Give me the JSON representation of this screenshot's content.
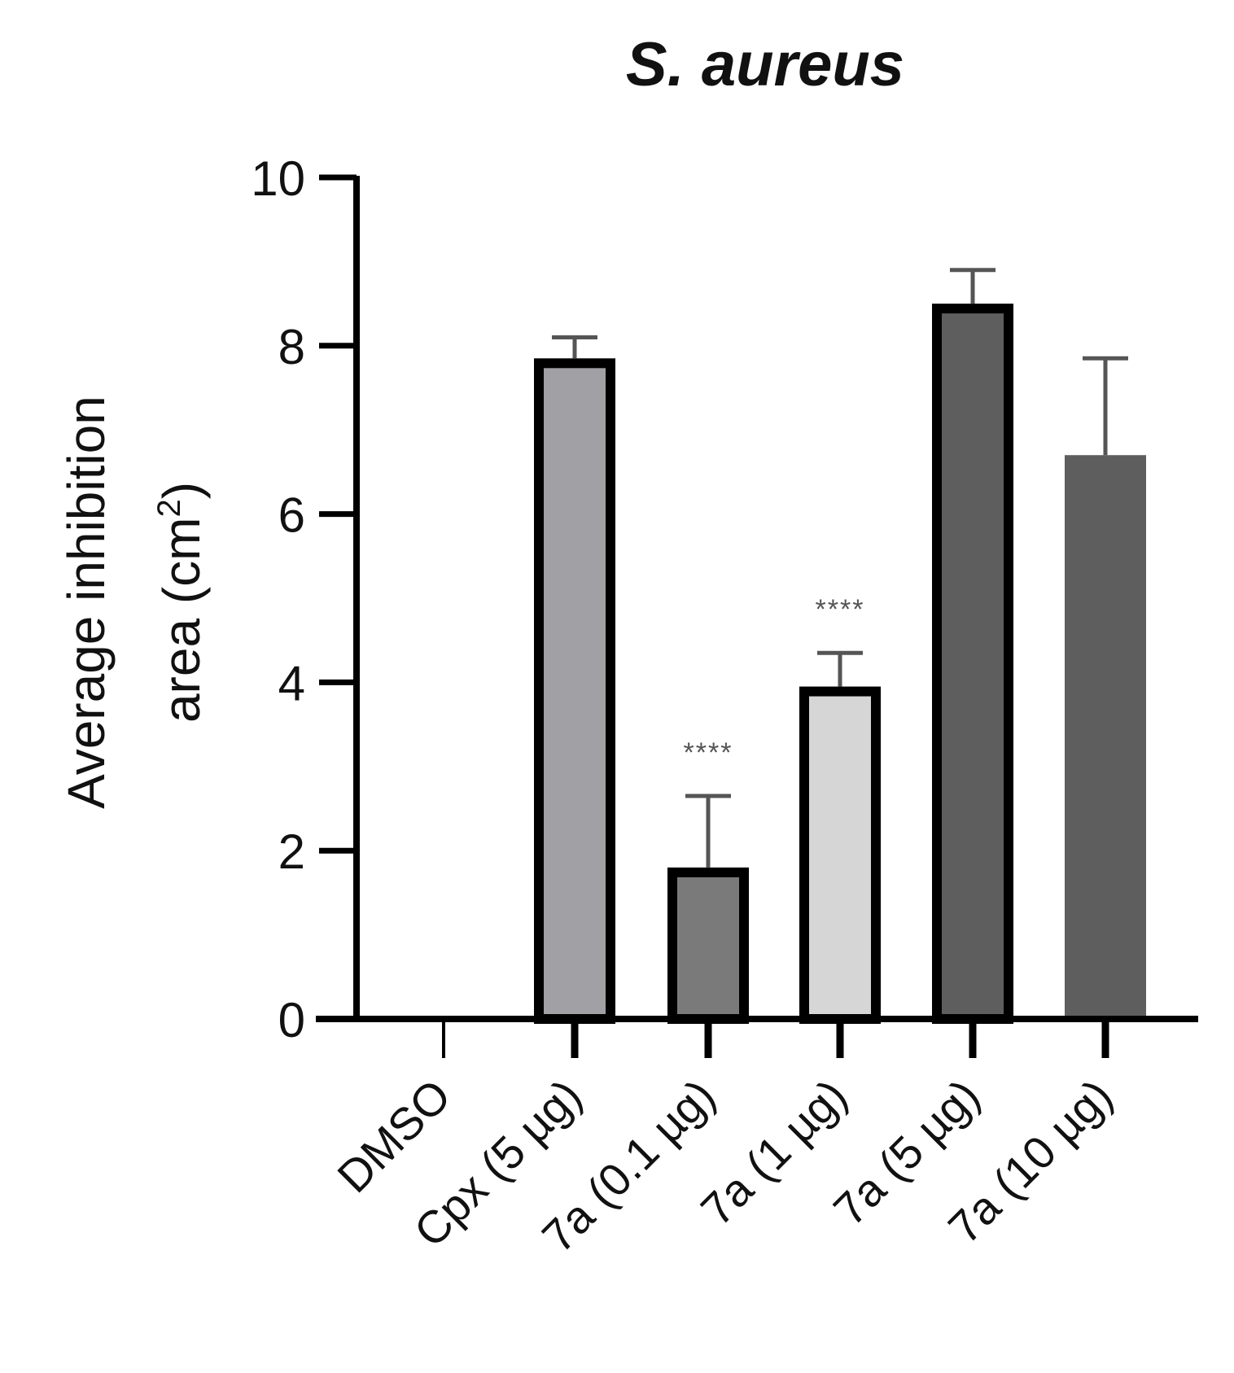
{
  "chart_data": {
    "type": "bar",
    "title": "S. aureus",
    "ylabel_line1": "Average inhibition",
    "ylabel_line2_prefix": "area (cm",
    "ylabel_superscript": "2",
    "ylabel_line2_suffix": ")",
    "xlabel": "",
    "ylim": [
      0,
      10
    ],
    "yticks": [
      "0",
      "2",
      "4",
      "6",
      "8",
      "10"
    ],
    "categories": [
      "DMSO",
      "Cpx (5 µg)",
      "7a (0.1 µg)",
      "7a (1 µg)",
      "7a (5 µg)",
      "7a (10 µg)"
    ],
    "values": [
      0,
      7.85,
      1.8,
      3.95,
      8.5,
      6.7
    ],
    "errors": [
      0,
      0.25,
      0.85,
      0.4,
      0.4,
      1.15
    ],
    "significance": [
      "",
      "",
      "****",
      "****",
      "",
      ""
    ],
    "bar_colors": [
      "#ffffff",
      "#a0a0a5",
      "#7a7a7a",
      "#d6d6d6",
      "#5e5e5e",
      "#5e5e5e"
    ],
    "bar_outlined": [
      false,
      true,
      true,
      true,
      true,
      false
    ],
    "grid": false,
    "legend": "none"
  }
}
